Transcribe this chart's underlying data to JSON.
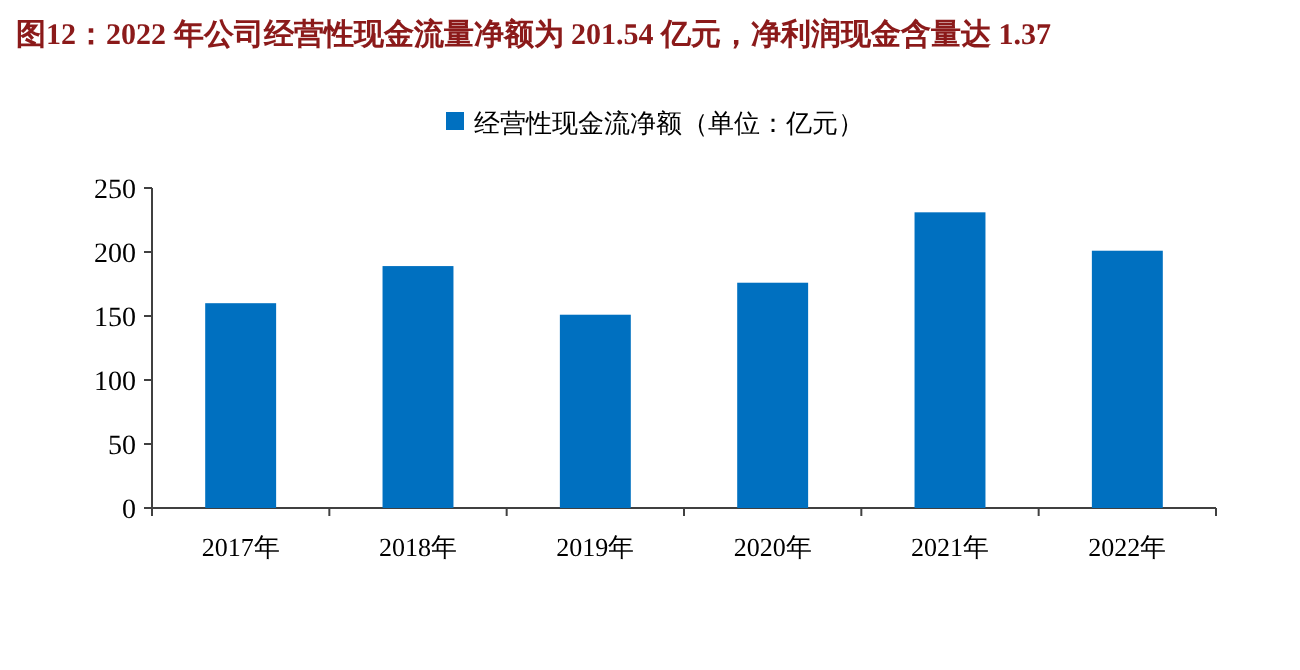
{
  "chart_data": {
    "type": "bar",
    "title": "图12：2022 年公司经营性现金流量净额为 201.54 亿元，净利润现金含量达 1.37",
    "categories": [
      "2017年",
      "2018年",
      "2019年",
      "2020年",
      "2021年",
      "2022年"
    ],
    "series": [
      {
        "name": "经营性现金流净额（单位：亿元）",
        "color": "#0070c0",
        "values": [
          160,
          189,
          151,
          176,
          231,
          201
        ]
      }
    ],
    "ylim": [
      0,
      250
    ],
    "yticks": [
      0,
      50,
      100,
      150,
      200,
      250
    ],
    "legend": "top"
  }
}
